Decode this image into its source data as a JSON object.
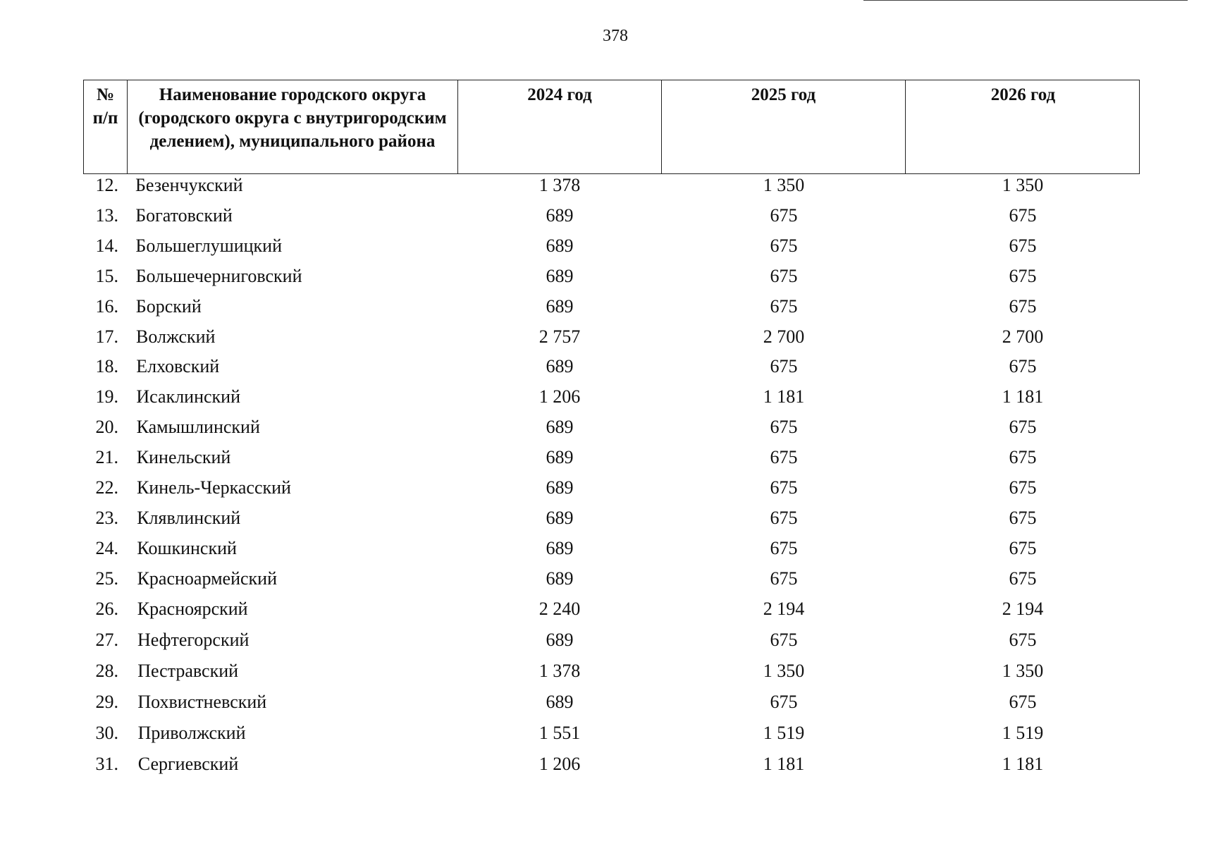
{
  "page_number": "378",
  "table": {
    "header": [
      "№ п/п",
      "Наименование городского округа (городского округа с внутригородским делением), муниципального района",
      "2024 год",
      "2025 год",
      "2026 год"
    ],
    "rows": [
      [
        "12.",
        "Безенчукский",
        "1 378",
        "1 350",
        "1 350"
      ],
      [
        "13.",
        "Богатовский",
        "689",
        "675",
        "675"
      ],
      [
        "14.",
        "Большеглушицкий",
        "689",
        "675",
        "675"
      ],
      [
        "15.",
        "Большечерниговский",
        "689",
        "675",
        "675"
      ],
      [
        "16.",
        "Борский",
        "689",
        "675",
        "675"
      ],
      [
        "17.",
        "Волжский",
        "2 757",
        "2 700",
        "2 700"
      ],
      [
        "18.",
        "Елховский",
        "689",
        "675",
        "675"
      ],
      [
        "19.",
        "Исаклинский",
        "1 206",
        "1 181",
        "1 181"
      ],
      [
        "20.",
        "Камышлинский",
        "689",
        "675",
        "675"
      ],
      [
        "21.",
        "Кинельский",
        "689",
        "675",
        "675"
      ],
      [
        "22.",
        "Кинель-Черкасский",
        "689",
        "675",
        "675"
      ],
      [
        "23.",
        "Клявлинский",
        "689",
        "675",
        "675"
      ],
      [
        "24.",
        "Кошкинский",
        "689",
        "675",
        "675"
      ],
      [
        "25.",
        "Красноармейский",
        "689",
        "675",
        "675"
      ],
      [
        "26.",
        "Красноярский",
        "2 240",
        "2 194",
        "2 194"
      ],
      [
        "27.",
        "Нефтегорский",
        "689",
        "675",
        "675"
      ],
      [
        "28.",
        "Пестравский",
        "1 378",
        "1 350",
        "1 350"
      ],
      [
        "29.",
        "Похвистневский",
        "689",
        "675",
        "675"
      ],
      [
        "30.",
        "Приволжский",
        "1 551",
        "1 519",
        "1 519"
      ],
      [
        "31.",
        "Сергиевский",
        "1 206",
        "1 181",
        "1 181"
      ]
    ]
  }
}
